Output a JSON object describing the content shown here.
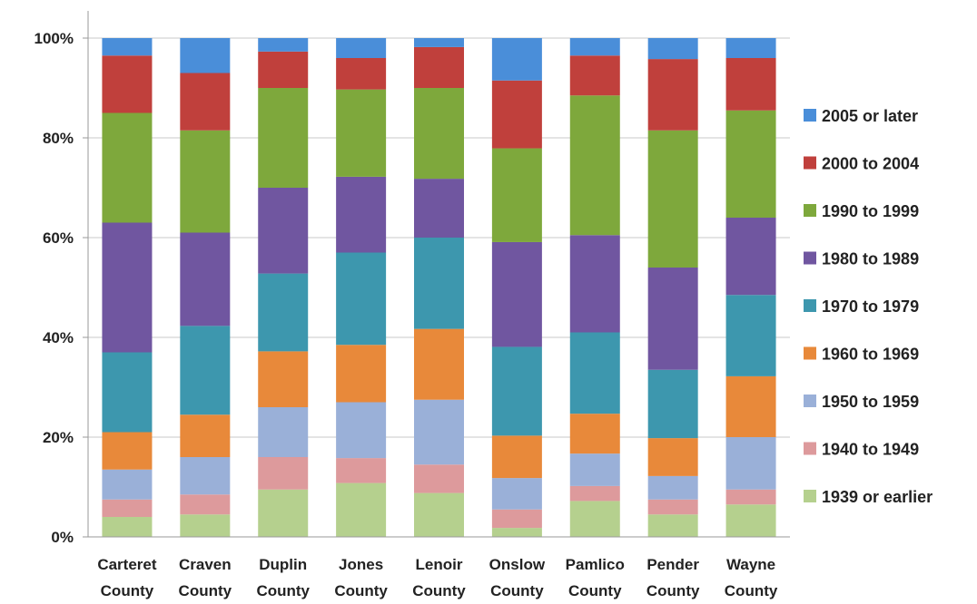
{
  "chart_data": {
    "type": "bar",
    "stacked": true,
    "percent_stacked": true,
    "ylim": [
      0,
      100
    ],
    "yticks": [
      "0%",
      "20%",
      "40%",
      "60%",
      "80%",
      "100%"
    ],
    "grid": true,
    "legend_position": "right",
    "categories": [
      [
        "Carteret",
        "County"
      ],
      [
        "Craven",
        "County"
      ],
      [
        "Duplin",
        "County"
      ],
      [
        "Jones",
        "County"
      ],
      [
        "Lenoir",
        "County"
      ],
      [
        "Onslow",
        "County"
      ],
      [
        "Pamlico",
        "County"
      ],
      [
        "Pender",
        "County"
      ],
      [
        "Wayne",
        "County"
      ]
    ],
    "series": [
      {
        "name": "1939 or earlier",
        "color": "#b5d08e",
        "values": [
          4,
          4.5,
          9.5,
          10.8,
          8.8,
          1.8,
          7.2,
          4.5,
          6.5
        ]
      },
      {
        "name": "1940 to 1949",
        "color": "#dd9a9c",
        "values": [
          3.5,
          4,
          6.5,
          5,
          5.7,
          3.7,
          3,
          3,
          3
        ]
      },
      {
        "name": "1950 to 1959",
        "color": "#9ab0d8",
        "values": [
          6,
          7.5,
          10,
          11.2,
          13,
          6.3,
          6.5,
          4.7,
          10.5
        ]
      },
      {
        "name": "1960 to 1969",
        "color": "#e8893a",
        "values": [
          7.5,
          8.5,
          11.2,
          11.5,
          14.2,
          8.5,
          8,
          7.6,
          12.2
        ]
      },
      {
        "name": "1970 to 1979",
        "color": "#3d97ae",
        "values": [
          16,
          17.8,
          15.6,
          18.5,
          18.3,
          17.8,
          16.3,
          13.7,
          16.3
        ]
      },
      {
        "name": "1980 to 1989",
        "color": "#7056a0",
        "values": [
          26,
          18.7,
          17.2,
          15.2,
          11.8,
          21,
          19.5,
          20.5,
          15.5
        ]
      },
      {
        "name": "1990 to 1999",
        "color": "#7ea83c",
        "values": [
          22,
          20.5,
          20,
          17.5,
          18.2,
          18.8,
          28,
          27.5,
          21.5
        ]
      },
      {
        "name": "2000 to 2004",
        "color": "#c0403c",
        "values": [
          11.5,
          11.5,
          7.3,
          6.3,
          8.2,
          13.6,
          8,
          14.3,
          10.5
        ]
      },
      {
        "name": "2005 or later",
        "color": "#4a8ed9",
        "values": [
          3.5,
          7,
          2.7,
          4,
          1.8,
          8.5,
          3.5,
          4.2,
          4
        ]
      }
    ]
  }
}
